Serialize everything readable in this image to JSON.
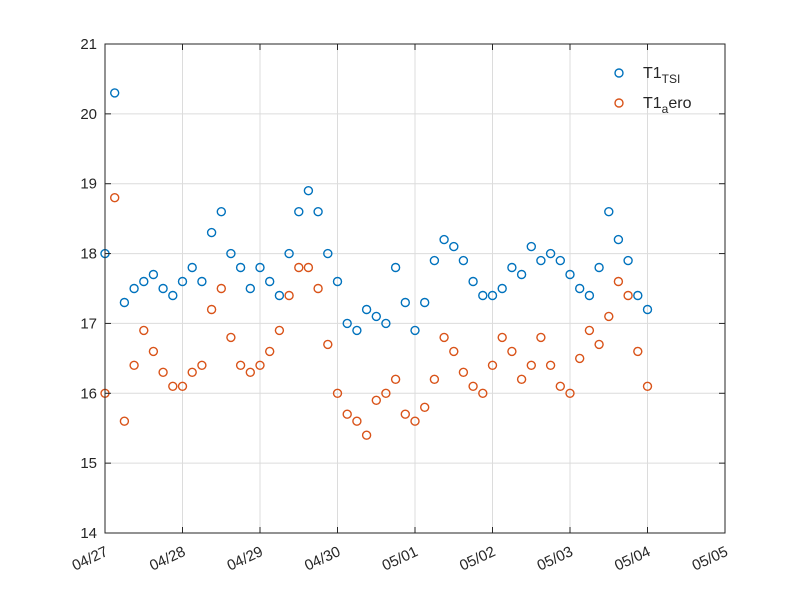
{
  "chart_data": {
    "type": "scatter",
    "title": "",
    "xlabel": "",
    "ylabel": "",
    "xlim": [
      "04/27",
      "05/05"
    ],
    "ylim": [
      14,
      21
    ],
    "grid": true,
    "legend_position": "top-right",
    "xticks": [
      "04/27",
      "04/28",
      "04/29",
      "04/30",
      "05/01",
      "05/02",
      "05/03",
      "05/04",
      "05/05"
    ],
    "yticks": [
      14,
      15,
      16,
      17,
      18,
      19,
      20,
      21
    ],
    "series": [
      {
        "key": "tsi",
        "legend_base": "T1",
        "legend_sub": "TSI",
        "legend_tail": "",
        "color": "#0072bd",
        "x": [
          "04/27 00:00",
          "04/27 03:00",
          "04/27 06:00",
          "04/27 09:00",
          "04/27 12:00",
          "04/27 15:00",
          "04/27 18:00",
          "04/27 21:00",
          "04/28 00:00",
          "04/28 03:00",
          "04/28 06:00",
          "04/28 09:00",
          "04/28 12:00",
          "04/28 15:00",
          "04/28 18:00",
          "04/28 21:00",
          "04/29 00:00",
          "04/29 03:00",
          "04/29 06:00",
          "04/29 09:00",
          "04/29 12:00",
          "04/29 15:00",
          "04/29 18:00",
          "04/29 21:00",
          "04/30 00:00",
          "04/30 03:00",
          "04/30 06:00",
          "04/30 09:00",
          "04/30 12:00",
          "04/30 15:00",
          "04/30 18:00",
          "04/30 21:00",
          "05/01 00:00",
          "05/01 03:00",
          "05/01 06:00",
          "05/01 09:00",
          "05/01 12:00",
          "05/01 15:00",
          "05/01 18:00",
          "05/01 21:00",
          "05/02 00:00",
          "05/02 03:00",
          "05/02 06:00",
          "05/02 09:00",
          "05/02 12:00",
          "05/02 15:00",
          "05/02 18:00",
          "05/02 21:00",
          "05/03 00:00",
          "05/03 03:00",
          "05/03 06:00",
          "05/03 09:00",
          "05/03 12:00",
          "05/03 15:00",
          "05/03 18:00",
          "05/03 21:00",
          "05/04 00:00"
        ],
        "y": [
          18.0,
          20.3,
          17.3,
          17.5,
          17.6,
          17.7,
          17.5,
          17.4,
          17.6,
          17.8,
          17.6,
          18.3,
          18.6,
          18.0,
          17.8,
          17.5,
          17.8,
          17.6,
          17.4,
          18.0,
          18.6,
          18.9,
          18.6,
          18.0,
          17.6,
          17.0,
          16.9,
          17.2,
          17.1,
          17.0,
          17.8,
          17.3,
          16.9,
          17.3,
          17.9,
          18.2,
          18.1,
          17.9,
          17.6,
          17.4,
          17.4,
          17.5,
          17.8,
          17.7,
          18.1,
          17.9,
          18.0,
          17.9,
          17.7,
          17.5,
          17.4,
          17.8,
          18.6,
          18.2,
          17.9,
          17.4,
          17.2
        ]
      },
      {
        "key": "aero",
        "legend_base": "T1",
        "legend_sub": "a",
        "legend_tail": "ero",
        "color": "#d95319",
        "x": [
          "04/27 00:00",
          "04/27 03:00",
          "04/27 06:00",
          "04/27 09:00",
          "04/27 12:00",
          "04/27 15:00",
          "04/27 18:00",
          "04/27 21:00",
          "04/28 00:00",
          "04/28 03:00",
          "04/28 06:00",
          "04/28 09:00",
          "04/28 12:00",
          "04/28 15:00",
          "04/28 18:00",
          "04/28 21:00",
          "04/29 00:00",
          "04/29 03:00",
          "04/29 06:00",
          "04/29 09:00",
          "04/29 12:00",
          "04/29 15:00",
          "04/29 18:00",
          "04/29 21:00",
          "04/30 00:00",
          "04/30 03:00",
          "04/30 06:00",
          "04/30 09:00",
          "04/30 12:00",
          "04/30 15:00",
          "04/30 18:00",
          "04/30 21:00",
          "05/01 00:00",
          "05/01 03:00",
          "05/01 06:00",
          "05/01 09:00",
          "05/01 12:00",
          "05/01 15:00",
          "05/01 18:00",
          "05/01 21:00",
          "05/02 00:00",
          "05/02 03:00",
          "05/02 06:00",
          "05/02 09:00",
          "05/02 12:00",
          "05/02 15:00",
          "05/02 18:00",
          "05/02 21:00",
          "05/03 00:00",
          "05/03 03:00",
          "05/03 06:00",
          "05/03 09:00",
          "05/03 12:00",
          "05/03 15:00",
          "05/03 18:00",
          "05/03 21:00",
          "05/04 00:00"
        ],
        "y": [
          16.0,
          18.8,
          15.6,
          16.4,
          16.9,
          16.6,
          16.3,
          16.1,
          16.1,
          16.3,
          16.4,
          17.2,
          17.5,
          16.8,
          16.4,
          16.3,
          16.4,
          16.6,
          16.9,
          17.4,
          17.8,
          17.8,
          17.5,
          16.7,
          16.0,
          15.7,
          15.6,
          15.4,
          15.9,
          16.0,
          16.2,
          15.7,
          15.6,
          15.8,
          16.2,
          16.8,
          16.6,
          16.3,
          16.1,
          16.0,
          16.4,
          16.8,
          16.6,
          16.2,
          16.4,
          16.8,
          16.4,
          16.1,
          16.0,
          16.5,
          16.9,
          16.7,
          17.1,
          17.6,
          17.4,
          16.6,
          16.1
        ]
      }
    ]
  }
}
